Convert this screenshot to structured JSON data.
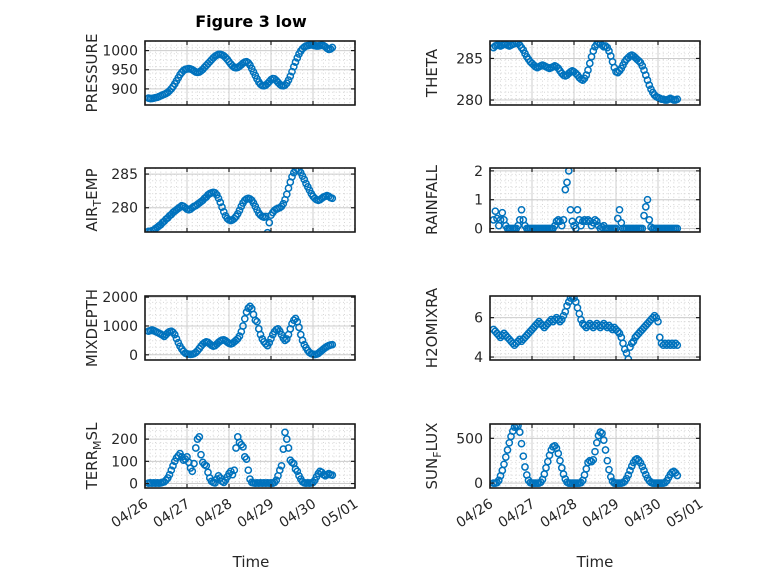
{
  "title": "Figure 3 low",
  "marker_color": "#0072BD",
  "axis_color": "#1a1a1a",
  "tick_text_color": "#262626",
  "major_grid_color": "#cccccc",
  "minor_grid_color": "#d6d6d6",
  "chart_data": {
    "type": "scatter",
    "marker": "open-circle",
    "legend": "none",
    "grid": "major solid, minor dotted",
    "xlabel": "Time",
    "x_unit": "hours since 04/26 00:00",
    "xlim": [
      0,
      120
    ],
    "xticks": [
      0,
      24,
      48,
      72,
      96,
      120
    ],
    "xtick_labels": [
      "04/26",
      "04/27",
      "04/28",
      "04/29",
      "04/30",
      "05/01"
    ],
    "x": [
      2,
      3,
      4,
      5,
      6,
      7,
      8,
      9,
      10,
      11,
      12,
      13,
      14,
      15,
      16,
      17,
      18,
      19,
      20,
      21,
      22,
      23,
      24,
      25,
      26,
      27,
      28,
      29,
      30,
      31,
      32,
      33,
      34,
      35,
      36,
      37,
      38,
      39,
      40,
      41,
      42,
      43,
      44,
      45,
      46,
      47,
      48,
      49,
      50,
      51,
      52,
      53,
      54,
      55,
      56,
      57,
      58,
      59,
      60,
      61,
      62,
      63,
      64,
      65,
      66,
      67,
      68,
      69,
      70,
      71,
      72,
      73,
      74,
      75,
      76,
      77,
      78,
      79,
      80,
      81,
      82,
      83,
      84,
      85,
      86,
      87,
      88,
      89,
      90,
      91,
      92,
      93,
      94,
      95,
      96,
      97,
      98,
      99,
      100,
      101,
      102,
      103,
      104,
      105,
      106,
      107
    ],
    "series": [
      {
        "id": "pressure",
        "name": "PRESSURE",
        "ylabel_parts": {
          "pre": "PRESSURE",
          "sub": "",
          "post": ""
        },
        "ylim": [
          858,
          1025
        ],
        "yticks": [
          900,
          950,
          1000
        ],
        "values": [
          876,
          875,
          875,
          876,
          877,
          878,
          880,
          882,
          884,
          886,
          888,
          891,
          895,
          900,
          906,
          913,
          921,
          929,
          937,
          943,
          948,
          951,
          952,
          953,
          952,
          950,
          947,
          944,
          943,
          944,
          947,
          951,
          956,
          961,
          966,
          971,
          976,
          981,
          985,
          988,
          990,
          990,
          989,
          986,
          982,
          977,
          971,
          965,
          960,
          956,
          955,
          956,
          959,
          963,
          967,
          970,
          971,
          968,
          962,
          953,
          944,
          935,
          926,
          918,
          912,
          909,
          908,
          910,
          914,
          919,
          924,
          927,
          926,
          922,
          917,
          912,
          909,
          908,
          910,
          915,
          923,
          933,
          945,
          958,
          970,
          981,
          991,
          999,
          1005,
          1009,
          1012,
          1013,
          1014,
          1015,
          1014,
          1013,
          1012,
          1012,
          1013,
          1014,
          1013,
          1010,
          1006,
          1003,
          1004,
          1008
        ]
      },
      {
        "id": "theta",
        "name": "THETA",
        "ylabel_parts": {
          "pre": "THETA",
          "sub": "",
          "post": ""
        },
        "ylim": [
          279.4,
          287.1
        ],
        "yticks": [
          280,
          285
        ],
        "values": [
          286.3,
          286.5,
          286.6,
          286.6,
          286.5,
          286.6,
          286.7,
          286.7,
          286.6,
          286.5,
          286.6,
          286.7,
          286.8,
          286.9,
          286.8,
          286.6,
          286.3,
          286.0,
          285.6,
          285.2,
          284.9,
          284.6,
          284.4,
          284.2,
          284.0,
          283.9,
          284.0,
          284.1,
          284.2,
          284.1,
          284.0,
          283.9,
          283.8,
          283.9,
          284.0,
          284.1,
          284.0,
          283.8,
          283.5,
          283.2,
          283.0,
          282.9,
          283.0,
          283.2,
          283.4,
          283.5,
          283.4,
          283.2,
          283.0,
          282.7,
          282.5,
          282.4,
          282.6,
          283.0,
          283.6,
          284.4,
          285.2,
          285.9,
          286.4,
          286.7,
          286.9,
          286.8,
          286.6,
          286.4,
          286.5,
          286.3,
          285.9,
          285.3,
          284.6,
          283.9,
          283.4,
          283.3,
          283.5,
          283.8,
          284.2,
          284.6,
          284.9,
          285.1,
          285.3,
          285.4,
          285.3,
          285.1,
          284.9,
          284.7,
          284.5,
          284.1,
          283.6,
          283.0,
          282.4,
          281.8,
          281.3,
          280.9,
          280.6,
          280.4,
          280.3,
          280.2,
          280.1,
          280.1,
          280.0,
          280.0,
          280.1,
          280.2,
          280.1,
          280.0,
          280.0,
          280.1
        ]
      },
      {
        "id": "airtemp",
        "name": "AIR_TEMP",
        "ylabel_parts": {
          "pre": "AIR",
          "sub": "T",
          "post": "EMP"
        },
        "ylim": [
          276.4,
          285.9
        ],
        "yticks": [
          280,
          285
        ],
        "values": [
          276.5,
          276.5,
          276.6,
          276.7,
          276.9,
          277.1,
          277.3,
          277.5,
          277.8,
          278.0,
          278.3,
          278.5,
          278.8,
          279.0,
          279.3,
          279.5,
          279.7,
          279.9,
          280.1,
          280.3,
          280.2,
          280.0,
          279.8,
          279.7,
          279.8,
          280.0,
          280.2,
          280.3,
          280.5,
          280.7,
          280.9,
          281.1,
          281.4,
          281.6,
          281.9,
          282.1,
          282.2,
          282.3,
          282.2,
          281.9,
          281.4,
          280.8,
          280.1,
          279.4,
          278.8,
          278.4,
          278.2,
          278.1,
          278.2,
          278.4,
          278.7,
          279.1,
          279.6,
          280.2,
          280.7,
          281.1,
          281.3,
          281.4,
          281.3,
          281.1,
          280.7,
          280.2,
          279.7,
          279.2,
          278.9,
          278.7,
          278.6,
          278.7,
          276.3,
          277.8,
          278.9,
          279.3,
          279.6,
          279.8,
          279.9,
          280.0,
          280.2,
          280.6,
          281.2,
          282.0,
          282.9,
          283.8,
          284.6,
          285.2,
          285.6,
          285.8,
          285.6,
          285.2,
          284.7,
          284.2,
          283.6,
          283.1,
          282.6,
          282.1,
          281.7,
          281.4,
          281.2,
          281.1,
          281.2,
          281.4,
          281.6,
          281.7,
          281.8,
          281.7,
          281.5,
          281.4
        ]
      },
      {
        "id": "rainfall",
        "name": "RAINFALL",
        "ylabel_parts": {
          "pre": "RAINFALL",
          "sub": "",
          "post": ""
        },
        "ylim": [
          -0.12,
          2.1
        ],
        "yticks": [
          0,
          1,
          2
        ],
        "values": [
          0.3,
          0.6,
          0.35,
          0.1,
          0.3,
          0.55,
          0.3,
          0.1,
          0,
          0,
          0,
          0,
          0,
          0,
          0.1,
          0.3,
          0.65,
          0.3,
          0.1,
          0,
          0,
          0,
          0,
          0,
          0,
          0,
          0,
          0,
          0,
          0,
          0,
          0,
          0,
          0,
          0,
          0.1,
          0.25,
          0.3,
          0.25,
          0.1,
          0.3,
          1.35,
          1.6,
          2.0,
          0.65,
          0.25,
          0.1,
          0,
          0.65,
          0.3,
          0.1,
          0.25,
          0.3,
          0.25,
          0.3,
          0.25,
          0.1,
          0.2,
          0.3,
          0.25,
          0.1,
          0,
          0.05,
          0.1,
          0,
          0,
          0,
          0,
          0,
          0,
          0,
          0.35,
          0.65,
          0.2,
          0,
          0,
          0,
          0,
          0,
          0,
          0,
          0,
          0,
          0,
          0,
          0,
          0.45,
          0.75,
          1.0,
          0.3,
          0.05,
          0,
          0,
          0,
          0,
          0,
          0,
          0,
          0,
          0,
          0,
          0,
          0,
          0,
          0,
          0
        ]
      },
      {
        "id": "mixdepth",
        "name": "MIXDEPTH",
        "ylabel_parts": {
          "pre": "MIXDEPTH",
          "sub": "",
          "post": ""
        },
        "ylim": [
          -180,
          2040
        ],
        "yticks": [
          0,
          1000,
          2000
        ],
        "values": [
          820,
          840,
          860,
          840,
          810,
          780,
          750,
          720,
          680,
          640,
          700,
          760,
          800,
          820,
          780,
          700,
          560,
          420,
          300,
          200,
          120,
          60,
          30,
          20,
          15,
          20,
          40,
          80,
          140,
          220,
          300,
          370,
          420,
          450,
          430,
          380,
          330,
          300,
          320,
          370,
          430,
          480,
          510,
          520,
          490,
          440,
          400,
          380,
          400,
          450,
          500,
          560,
          650,
          800,
          1000,
          1250,
          1480,
          1620,
          1680,
          1600,
          1400,
          1200,
          1150,
          900,
          700,
          550,
          450,
          380,
          320,
          420,
          560,
          700,
          800,
          870,
          900,
          820,
          700,
          580,
          500,
          550,
          700,
          900,
          1080,
          1200,
          1260,
          1150,
          950,
          700,
          500,
          350,
          250,
          150,
          80,
          40,
          20,
          10,
          20,
          50,
          100,
          150,
          200,
          250,
          290,
          320,
          340,
          350
        ]
      },
      {
        "id": "h2omixra",
        "name": "H2OMIXRA",
        "ylabel_parts": {
          "pre": "H2OMIXRA",
          "sub": "",
          "post": ""
        },
        "ylim": [
          3.85,
          7.1
        ],
        "yticks": [
          4,
          6
        ],
        "values": [
          5.4,
          5.3,
          5.2,
          5.1,
          5.0,
          5.1,
          5.2,
          5.1,
          5.0,
          4.9,
          4.8,
          4.7,
          4.6,
          4.7,
          4.8,
          4.9,
          4.8,
          4.9,
          5.0,
          5.1,
          5.2,
          5.3,
          5.4,
          5.5,
          5.6,
          5.7,
          5.8,
          5.7,
          5.6,
          5.5,
          5.6,
          5.7,
          5.8,
          5.9,
          5.8,
          5.9,
          6.0,
          5.9,
          5.8,
          5.9,
          6.1,
          6.3,
          6.6,
          6.8,
          7.0,
          7.1,
          7.0,
          6.8,
          6.5,
          6.2,
          5.9,
          5.7,
          5.6,
          5.5,
          5.6,
          5.7,
          5.6,
          5.5,
          5.6,
          5.7,
          5.6,
          5.5,
          5.6,
          5.7,
          5.6,
          5.5,
          5.6,
          5.5,
          5.4,
          5.5,
          5.4,
          5.3,
          5.2,
          5.0,
          4.7,
          4.4,
          4.2,
          3.9,
          4.5,
          4.7,
          4.8,
          5.0,
          5.1,
          5.2,
          5.3,
          5.4,
          5.5,
          5.6,
          5.7,
          5.8,
          5.9,
          6.0,
          6.1,
          6.0,
          5.8,
          5.0,
          4.7,
          4.6,
          4.7,
          4.6,
          4.7,
          4.6,
          4.7,
          4.6,
          4.7,
          4.6
        ]
      },
      {
        "id": "terrmsl",
        "name": "TERR_MSL",
        "ylabel_parts": {
          "pre": "TERR",
          "sub": "M",
          "post": "SL"
        },
        "ylim": [
          -20,
          268
        ],
        "yticks": [
          0,
          100,
          200
        ],
        "values": [
          2,
          3,
          2,
          3,
          2,
          3,
          2,
          3,
          5,
          8,
          15,
          25,
          40,
          60,
          80,
          100,
          115,
          125,
          135,
          120,
          105,
          110,
          120,
          95,
          70,
          55,
          90,
          160,
          200,
          210,
          130,
          95,
          85,
          80,
          50,
          25,
          10,
          5,
          3,
          20,
          35,
          25,
          10,
          5,
          15,
          30,
          45,
          55,
          40,
          60,
          160,
          210,
          185,
          175,
          165,
          120,
          110,
          60,
          20,
          5,
          3,
          2,
          3,
          2,
          3,
          2,
          3,
          2,
          3,
          2,
          3,
          2,
          5,
          15,
          35,
          60,
          80,
          155,
          230,
          200,
          160,
          105,
          95,
          90,
          65,
          55,
          35,
          20,
          8,
          3,
          2,
          3,
          2,
          3,
          5,
          15,
          30,
          45,
          55,
          50,
          40,
          35,
          40,
          45,
          40,
          38
        ]
      },
      {
        "id": "sunflux",
        "name": "SUN_FLUX",
        "ylabel_parts": {
          "pre": "SUN",
          "sub": "F",
          "post": "LUX"
        },
        "ylim": [
          -55,
          660
        ],
        "yticks": [
          0,
          500
        ],
        "values": [
          0,
          0,
          5,
          30,
          80,
          140,
          210,
          290,
          370,
          450,
          520,
          580,
          625,
          645,
          640,
          570,
          440,
          300,
          180,
          90,
          30,
          5,
          0,
          0,
          0,
          0,
          0,
          10,
          40,
          100,
          170,
          240,
          310,
          370,
          405,
          415,
          390,
          330,
          250,
          170,
          100,
          45,
          10,
          0,
          0,
          0,
          0,
          0,
          0,
          0,
          5,
          30,
          90,
          160,
          230,
          250,
          240,
          260,
          350,
          450,
          530,
          570,
          555,
          480,
          370,
          250,
          150,
          70,
          20,
          0,
          0,
          0,
          0,
          0,
          5,
          20,
          50,
          90,
          140,
          190,
          230,
          260,
          270,
          255,
          225,
          185,
          140,
          95,
          55,
          25,
          8,
          0,
          0,
          0,
          0,
          0,
          0,
          0,
          5,
          25,
          60,
          95,
          120,
          130,
          115,
          85
        ]
      }
    ]
  }
}
